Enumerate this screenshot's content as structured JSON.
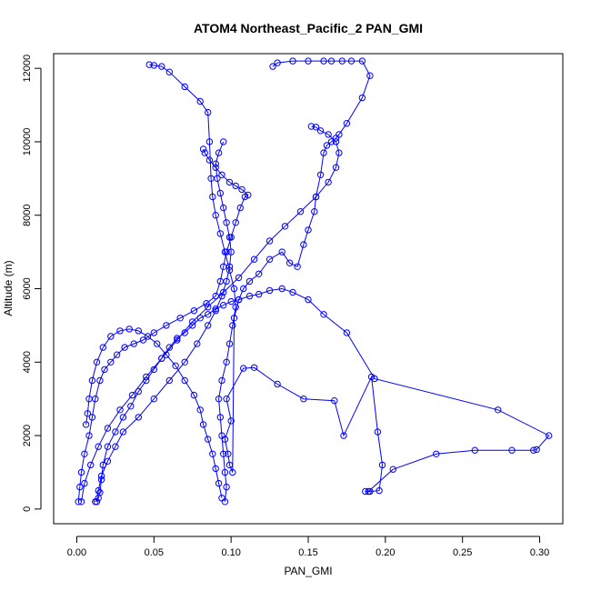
{
  "chart_data": {
    "type": "scatter",
    "title": "ATOM4 Northeast_Pacific_2 PAN_GMI",
    "xlabel": "PAN_GMI",
    "ylabel": "Altitude (m)",
    "xlim": [
      -0.015,
      0.315
    ],
    "ylim": [
      -400,
      12400
    ],
    "xticks": [
      0.0,
      0.05,
      0.1,
      0.15,
      0.2,
      0.25,
      0.3
    ],
    "xtick_labels": [
      "0.00",
      "0.05",
      "0.10",
      "0.15",
      "0.20",
      "0.25",
      "0.30"
    ],
    "yticks": [
      0,
      2000,
      4000,
      6000,
      8000,
      10000,
      12000
    ],
    "ytick_labels": [
      "0",
      "2000",
      "4000",
      "6000",
      "8000",
      "10000",
      "12000"
    ],
    "grid": false,
    "color": "#0000ff",
    "series": [
      {
        "x": [
          0.187,
          0.19,
          0.196,
          0.198,
          0.195,
          0.191,
          0.173,
          0.167,
          0.147,
          0.13,
          0.115,
          0.108,
          0.097,
          0.1,
          0.096,
          0.098,
          0.099,
          0.101,
          0.102,
          0.105,
          0.108,
          0.112,
          0.118,
          0.125,
          0.133,
          0.138,
          0.143,
          0.147,
          0.15,
          0.154,
          0.155,
          0.158,
          0.16,
          0.162,
          0.165,
          0.168,
          0.17,
          0.175,
          0.185,
          0.19,
          0.185,
          0.178,
          0.172,
          0.165,
          0.16,
          0.15,
          0.14,
          0.13,
          0.127
        ],
        "y": [
          480,
          480,
          500,
          1200,
          2100,
          3600,
          2000,
          2950,
          3000,
          3400,
          3850,
          3830,
          3000,
          2400,
          1900,
          1500,
          1200,
          1000,
          5200,
          5700,
          6000,
          6200,
          6400,
          6800,
          7000,
          6700,
          6600,
          7200,
          7600,
          8100,
          8500,
          9100,
          9700,
          9900,
          10000,
          10100,
          10200,
          10500,
          11200,
          11800,
          12200,
          12200,
          12200,
          12200,
          12200,
          12200,
          12200,
          12150,
          12050
        ]
      },
      {
        "x": [
          0.012,
          0.014,
          0.015,
          0.016,
          0.017,
          0.02,
          0.025,
          0.03,
          0.035,
          0.04,
          0.045,
          0.05,
          0.055,
          0.06,
          0.065,
          0.07,
          0.075,
          0.08,
          0.085,
          0.09,
          0.095,
          0.1,
          0.105,
          0.112,
          0.118,
          0.125,
          0.133,
          0.14,
          0.15,
          0.16,
          0.175,
          0.193,
          0.273,
          0.306,
          0.298,
          0.296,
          0.282,
          0.258,
          0.233,
          0.205,
          0.189
        ],
        "y": [
          200,
          300,
          450,
          800,
          1200,
          1700,
          2100,
          2500,
          2800,
          3200,
          3500,
          3800,
          4100,
          4400,
          4650,
          4800,
          5000,
          5200,
          5300,
          5450,
          5550,
          5650,
          5700,
          5800,
          5850,
          5950,
          6000,
          5900,
          5700,
          5300,
          4800,
          3550,
          2700,
          2000,
          1620,
          1600,
          1600,
          1600,
          1500,
          1080,
          480
        ]
      },
      {
        "x": [
          0.001,
          0.002,
          0.003,
          0.005,
          0.008,
          0.01,
          0.012,
          0.015,
          0.018,
          0.022,
          0.026,
          0.031,
          0.037,
          0.043,
          0.05,
          0.058,
          0.067,
          0.076,
          0.084,
          0.09,
          0.093,
          0.095,
          0.097,
          0.1,
          0.103,
          0.106,
          0.109,
          0.111,
          0.107,
          0.103,
          0.099,
          0.094,
          0.09,
          0.086,
          0.083,
          0.082
        ],
        "y": [
          200,
          600,
          1000,
          1500,
          2000,
          2500,
          3000,
          3500,
          3800,
          4000,
          4200,
          4400,
          4500,
          4600,
          4800,
          5000,
          5200,
          5400,
          5600,
          5800,
          6200,
          6600,
          7000,
          7400,
          7800,
          8200,
          8500,
          8550,
          8700,
          8800,
          8900,
          9100,
          9300,
          9500,
          9700,
          9800
        ]
      },
      {
        "x": [
          0.096,
          0.097,
          0.096,
          0.095,
          0.094,
          0.093,
          0.092,
          0.094,
          0.097,
          0.099,
          0.101,
          0.103,
          0.102,
          0.099,
          0.096,
          0.093,
          0.09,
          0.088,
          0.087,
          0.086,
          0.085,
          0.08,
          0.07,
          0.06,
          0.055,
          0.05,
          0.047
        ],
        "y": [
          200,
          600,
          1000,
          1500,
          2000,
          2500,
          3000,
          3500,
          4000,
          4500,
          5000,
          5500,
          6000,
          6500,
          7000,
          7500,
          8000,
          8500,
          9000,
          10000,
          10800,
          11100,
          11500,
          11900,
          12050,
          12080,
          12100
        ]
      },
      {
        "x": [
          0.013,
          0.014,
          0.016,
          0.02,
          0.025,
          0.03,
          0.04,
          0.05,
          0.06,
          0.07,
          0.078,
          0.085,
          0.09,
          0.094,
          0.097,
          0.099,
          0.1,
          0.099,
          0.097,
          0.095,
          0.093,
          0.091,
          0.09,
          0.092,
          0.095
        ],
        "y": [
          200,
          500,
          900,
          1300,
          1700,
          2100,
          2500,
          3000,
          3500,
          4000,
          4500,
          5000,
          5400,
          5800,
          6200,
          6600,
          7000,
          7400,
          7800,
          8200,
          8600,
          9000,
          9400,
          9700,
          10000
        ]
      },
      {
        "x": [
          0.094,
          0.092,
          0.09,
          0.088,
          0.085,
          0.082,
          0.08,
          0.076,
          0.07,
          0.064,
          0.058,
          0.052,
          0.046,
          0.04,
          0.034,
          0.028,
          0.022,
          0.017,
          0.013,
          0.01,
          0.008,
          0.007,
          0.006
        ],
        "y": [
          300,
          700,
          1100,
          1500,
          1900,
          2300,
          2700,
          3100,
          3500,
          3900,
          4200,
          4500,
          4700,
          4850,
          4900,
          4850,
          4700,
          4400,
          4000,
          3500,
          3000,
          2600,
          2300
        ]
      },
      {
        "x": [
          0.003,
          0.005,
          0.009,
          0.014,
          0.02,
          0.028,
          0.036,
          0.045,
          0.055,
          0.065,
          0.075,
          0.085,
          0.095,
          0.105,
          0.115,
          0.125,
          0.135,
          0.145,
          0.155,
          0.163,
          0.168,
          0.17,
          0.168,
          0.163,
          0.158,
          0.155,
          0.152
        ],
        "y": [
          200,
          700,
          1200,
          1700,
          2200,
          2700,
          3100,
          3600,
          4100,
          4600,
          5100,
          5500,
          5900,
          6300,
          6800,
          7300,
          7700,
          8100,
          8500,
          8900,
          9300,
          9700,
          10000,
          10200,
          10300,
          10400,
          10420
        ]
      }
    ]
  }
}
